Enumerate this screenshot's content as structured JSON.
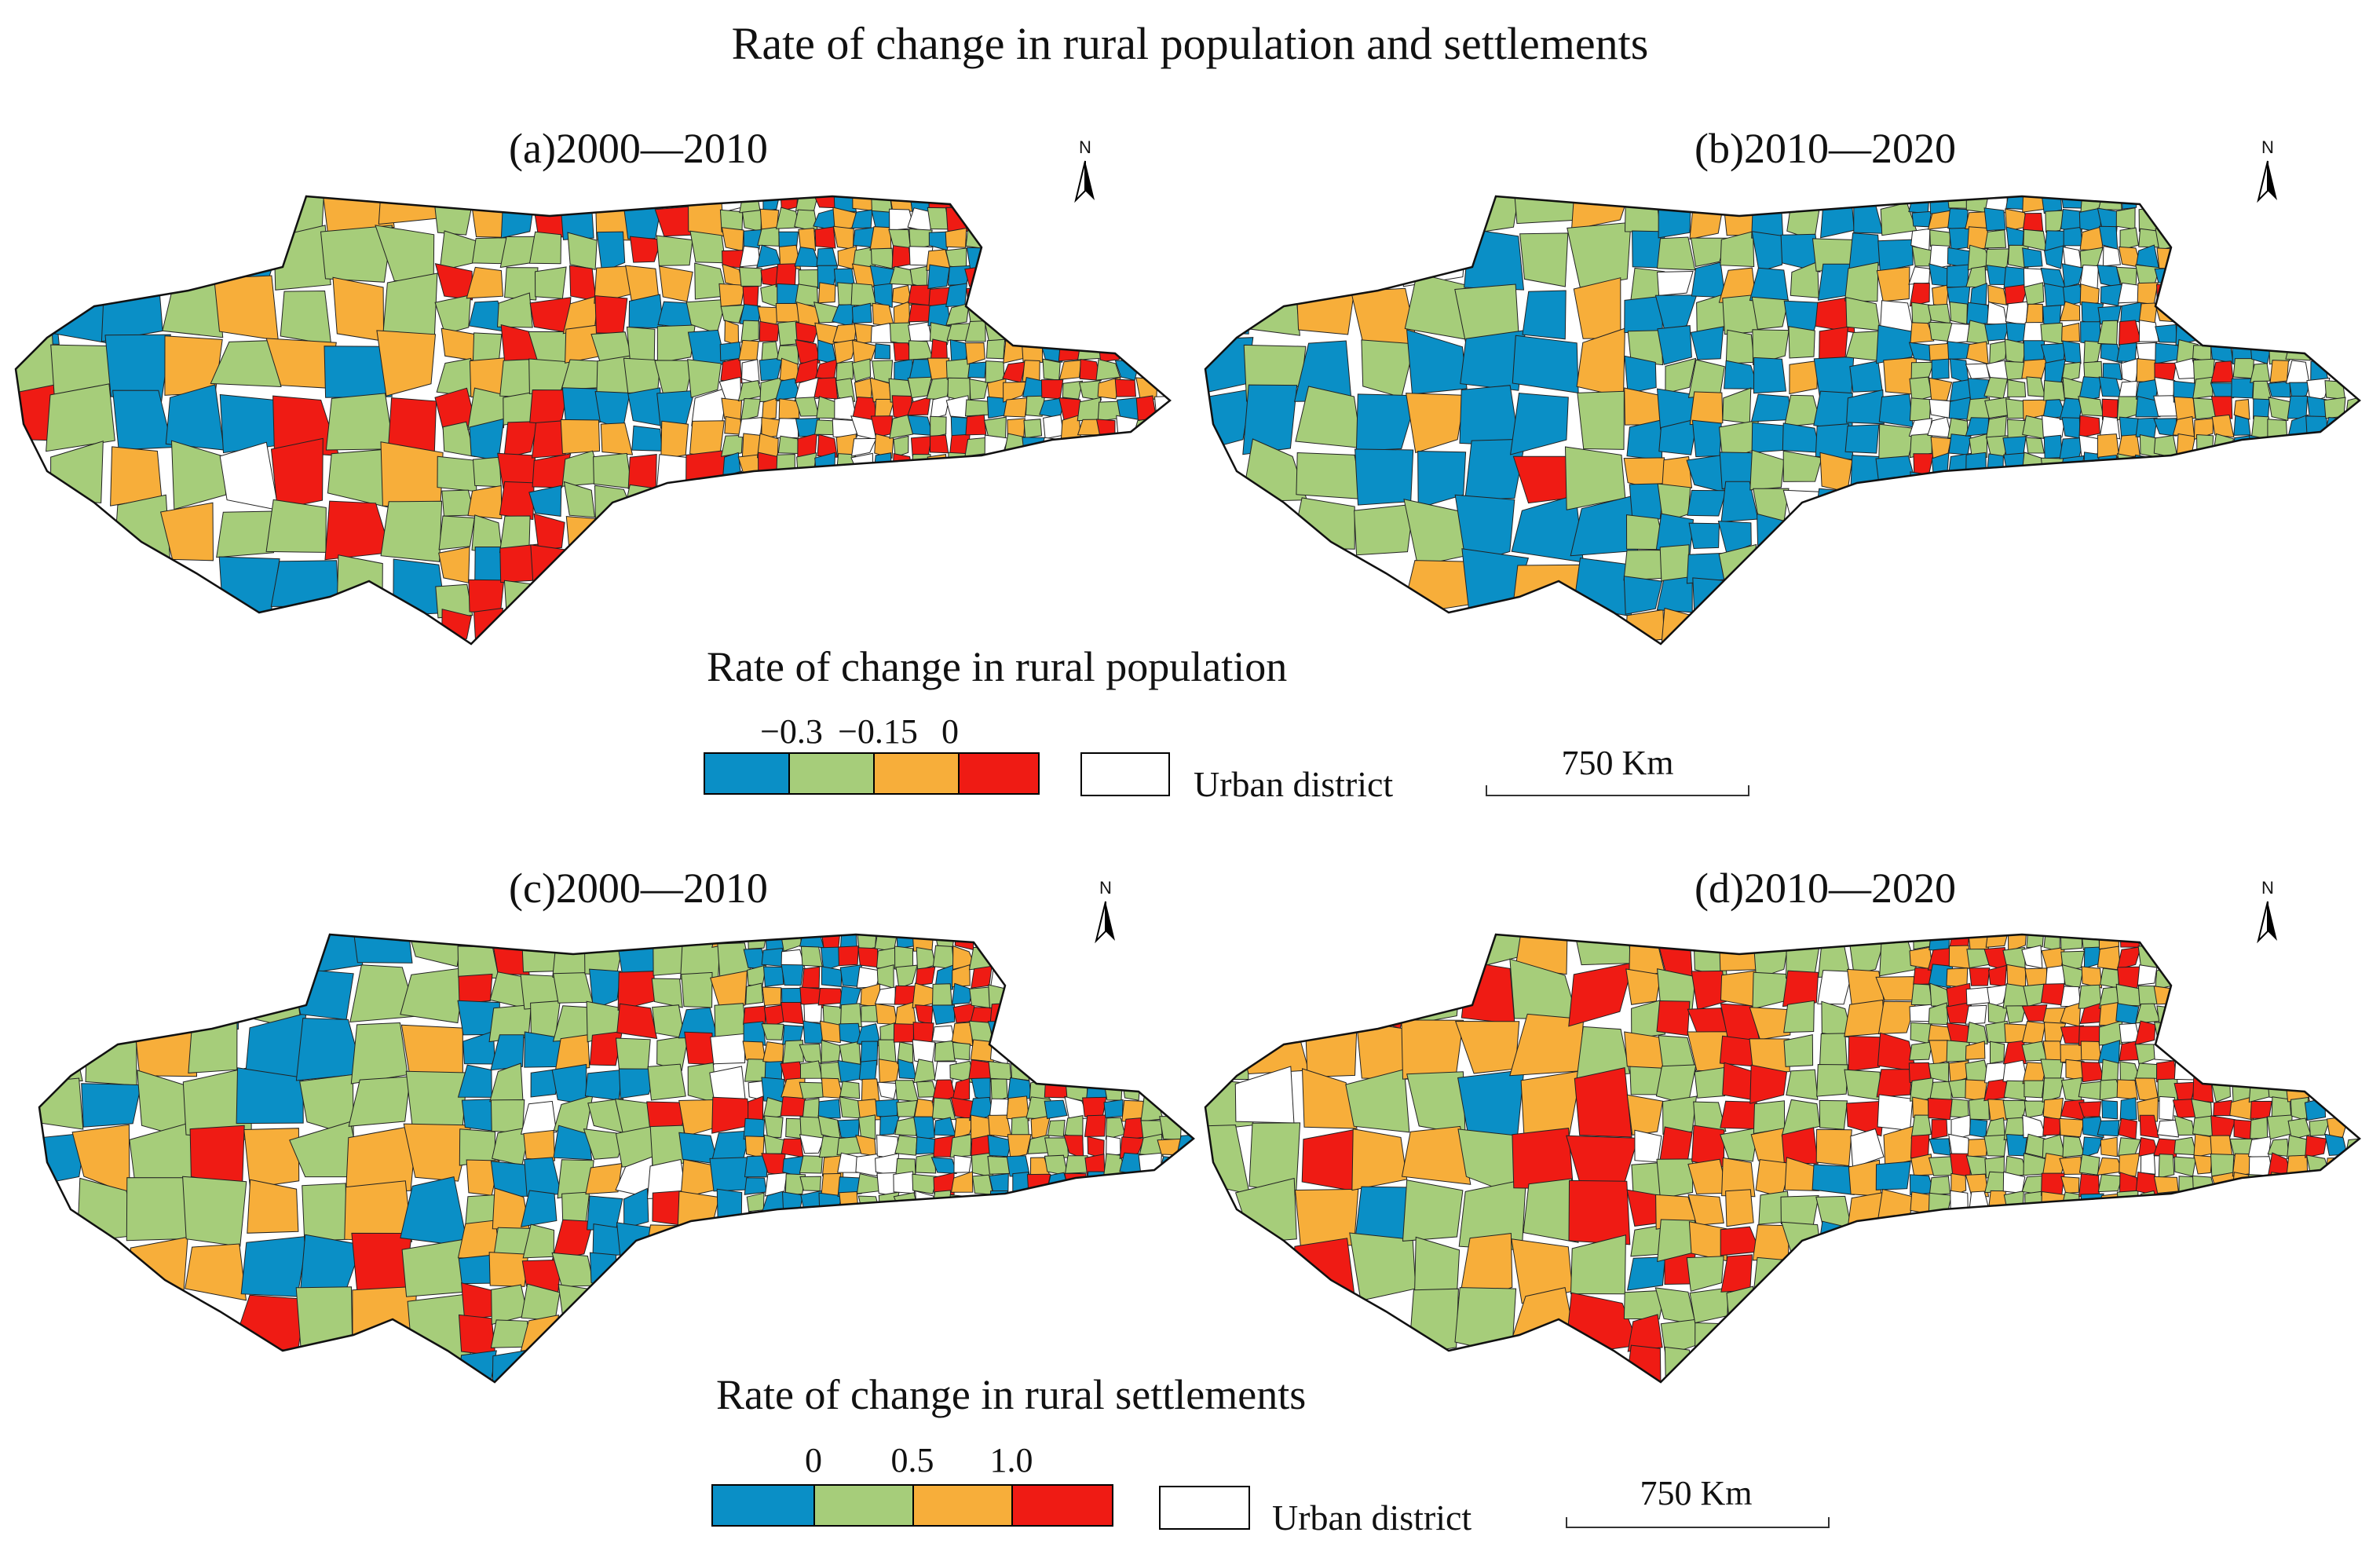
{
  "title": "Rate of change in rural population and settlements",
  "panels": [
    {
      "id": "a",
      "title": "(a)2000—2010",
      "north": "N"
    },
    {
      "id": "b",
      "title": "(b)2010—2020",
      "north": "N"
    },
    {
      "id": "c",
      "title": "(c)2000—2010",
      "north": "N"
    },
    {
      "id": "d",
      "title": "(d)2010—2020",
      "north": "N"
    }
  ],
  "legend_population": {
    "title": "Rate of change in rural population",
    "ticks": [
      "−0.3",
      "−0.15",
      "0"
    ],
    "classes": [
      "#0a8fc6",
      "#a6cd7a",
      "#f7ae3a",
      "#ef1b14"
    ],
    "urban_label": "Urban district",
    "scale_label": "750 Km"
  },
  "legend_settlements": {
    "title": "Rate of change in rural settlements",
    "ticks": [
      "0",
      "0.5",
      "1.0"
    ],
    "classes": [
      "#0a8fc6",
      "#a6cd7a",
      "#f7ae3a",
      "#ef1b14"
    ],
    "urban_label": "Urban district",
    "scale_label": "750 Km"
  },
  "colors": {
    "blue": "#0a8fc6",
    "green": "#a6cd7a",
    "orange": "#f7ae3a",
    "red": "#ef1b14",
    "urban": "#ffffff"
  },
  "map_weights": {
    "a": [
      0.26,
      0.34,
      0.22,
      0.18
    ],
    "b": [
      0.48,
      0.34,
      0.14,
      0.04
    ],
    "c": [
      0.22,
      0.46,
      0.16,
      0.16
    ],
    "d": [
      0.06,
      0.44,
      0.3,
      0.2
    ]
  }
}
